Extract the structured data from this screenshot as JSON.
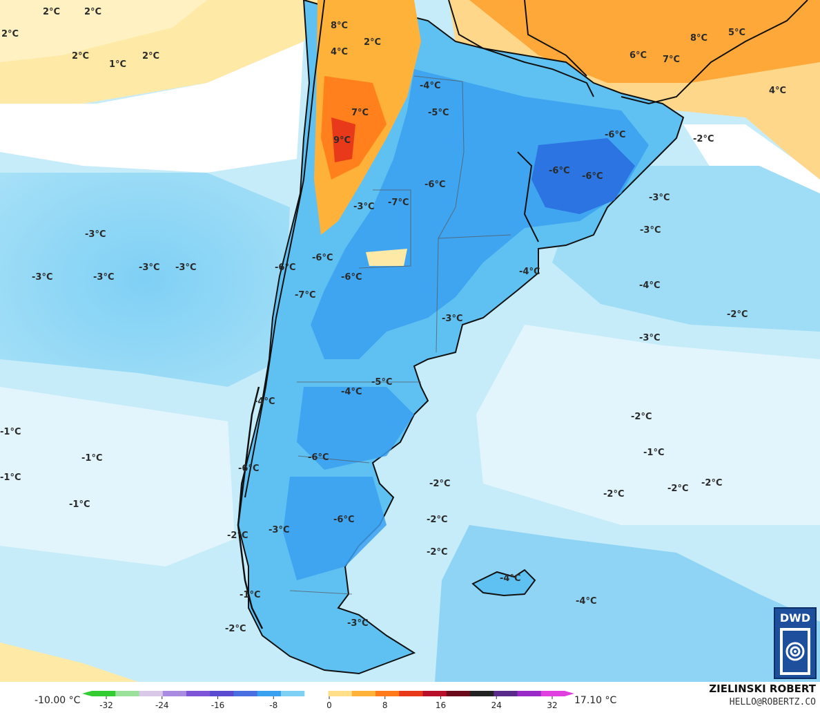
{
  "legend": {
    "min_label": "-10.00 °C",
    "max_label": "17.10 °C",
    "ticks": [
      "-32",
      "-24",
      "-16",
      "-8",
      "0",
      "8",
      "16",
      "24",
      "32"
    ],
    "colors": [
      "#33cc33",
      "#9be09b",
      "#d9c8e8",
      "#a98be0",
      "#7d55d6",
      "#5a4bd0",
      "#4a6fe0",
      "#3aa0f0",
      "#7fd0f5",
      "#ffffff",
      "#ffe08a",
      "#ffb23a",
      "#ff7a1a",
      "#e83a1a",
      "#b8102a",
      "#6a0a1a",
      "#222222",
      "#5a2a8a",
      "#9a2ac8",
      "#e040e0"
    ]
  },
  "author": {
    "name": "ZIELINSKI ROBERT",
    "email": "HELLO@ROBERTZ.CO"
  },
  "logo": {
    "text": "DWD"
  },
  "map_labels": [
    "2°C",
    "2°C",
    "2°C",
    "2°C",
    "1°C",
    "2°C",
    "8°C",
    "2°C",
    "4°C",
    "7°C",
    "9°C",
    "-4°C",
    "-5°C",
    "-6°C",
    "-3°C",
    "-7°C",
    "-6°C",
    "-6°C",
    "-6°C",
    "-2°C",
    "-3°C",
    "-3°C",
    "-3°C",
    "-3°C",
    "-3°C",
    "-3°C",
    "-6°C",
    "-6°C",
    "-6°C",
    "-7°C",
    "-4°C",
    "-4°C",
    "-3°C",
    "-2°C",
    "-3°C",
    "-3°C",
    "-4°C",
    "-5°C",
    "-4°C",
    "-2°C",
    "-1°C",
    "-1°C",
    "-1°C",
    "-1°C",
    "-6°C",
    "-6°C",
    "-2°C",
    "-2°C",
    "-1°C",
    "-2°C",
    "-2°C",
    "-6°C",
    "-2°C",
    "-2°C",
    "-3°C",
    "-2°C",
    "-4°C",
    "-4°C",
    "-1°C",
    "-2°C",
    "-3°C",
    "8°C",
    "5°C",
    "6°C",
    "7°C",
    "4°C"
  ]
}
